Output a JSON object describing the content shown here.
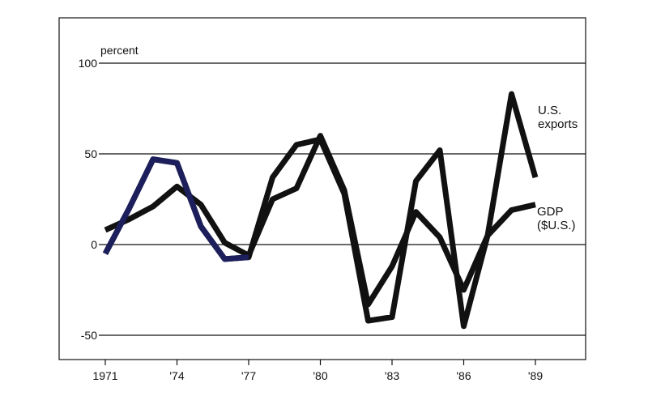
{
  "chart_data": {
    "type": "line",
    "title": "",
    "xlabel": "",
    "ylabel": "percent",
    "ylim": [
      -60,
      105
    ],
    "xlim": [
      1971,
      1989
    ],
    "yticks": [
      -50,
      0,
      50,
      100
    ],
    "xticks": [
      {
        "value": 1971,
        "label": "1971"
      },
      {
        "value": 1974,
        "label": "'74"
      },
      {
        "value": 1977,
        "label": "'77"
      },
      {
        "value": 1980,
        "label": "'80"
      },
      {
        "value": 1983,
        "label": "'83"
      },
      {
        "value": 1986,
        "label": "'86"
      },
      {
        "value": 1989,
        "label": "'89"
      }
    ],
    "grid": "horizontal",
    "series": [
      {
        "name": "U.S. exports",
        "label_lines": [
          "U.S.",
          "exports"
        ],
        "color": "#111111",
        "early_color": "#1c1f5c",
        "x": [
          1971,
          1972,
          1973,
          1974,
          1975,
          1976,
          1977,
          1978,
          1979,
          1980,
          1981,
          1982,
          1983,
          1984,
          1985,
          1986,
          1987,
          1988,
          1989
        ],
        "values": [
          -5,
          20,
          47,
          45,
          10,
          -8,
          -7,
          37,
          55,
          58,
          28,
          -42,
          -40,
          35,
          52,
          -45,
          5,
          83,
          37
        ]
      },
      {
        "name": "GDP ($U.S.)",
        "label_lines": [
          "GDP",
          "($U.S.)"
        ],
        "color": "#111111",
        "x": [
          1971,
          1972,
          1973,
          1974,
          1975,
          1976,
          1977,
          1978,
          1979,
          1980,
          1981,
          1982,
          1983,
          1984,
          1985,
          1986,
          1987,
          1988,
          1989
        ],
        "values": [
          8,
          14,
          21,
          32,
          22,
          1,
          -6,
          25,
          31,
          60,
          30,
          -33,
          -12,
          18,
          4,
          -25,
          5,
          19,
          22
        ]
      }
    ]
  }
}
